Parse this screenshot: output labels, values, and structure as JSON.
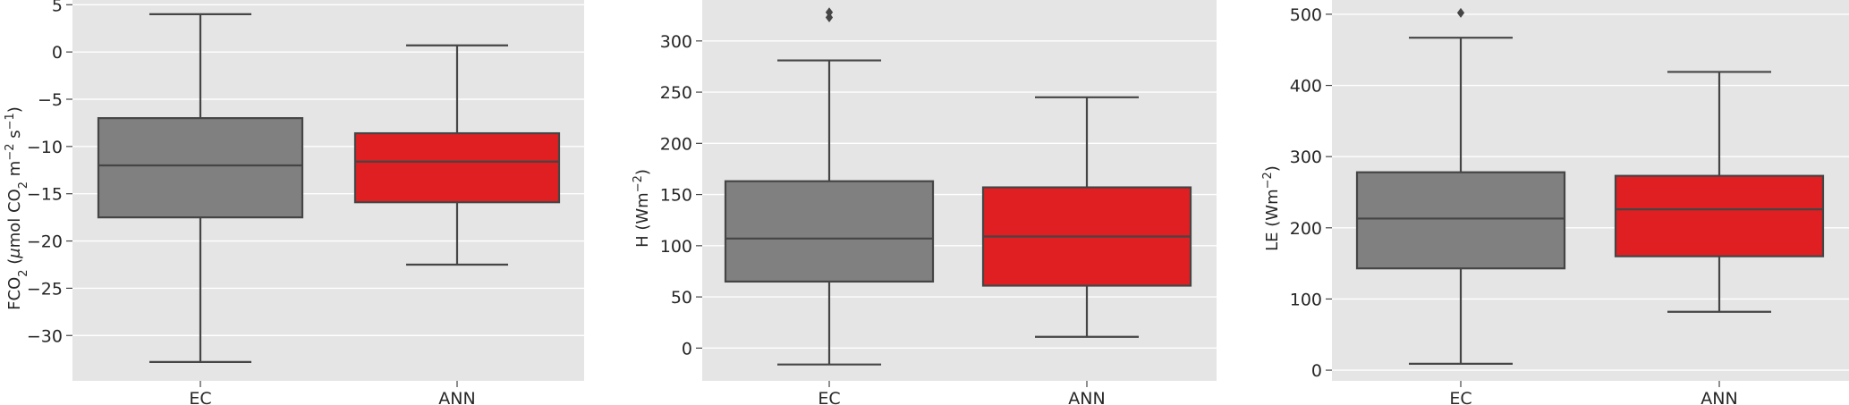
{
  "colors": {
    "panel_bg": "#e5e5e5",
    "grid": "#ffffff",
    "line": "#454545",
    "ec": "#808080",
    "ann": "#e01f22"
  },
  "chart_data": [
    {
      "type": "box",
      "ylabel": "FCO2 (μmol CO2 m−2 s−1)",
      "ylabel_parts": {
        "a": "FCO",
        "a_sub": "2",
        "b": " (",
        "mu": "μ",
        "c": "mol CO",
        "c_sub": "2",
        "d": " m",
        "d_sup": "−2",
        "e": " s",
        "e_sup": "−1",
        "f": ")"
      },
      "ylim": [
        -34.8,
        5.5
      ],
      "yticks": [
        5,
        0,
        -5,
        -10,
        -15,
        -20,
        -25,
        -30
      ],
      "ytick_labels": [
        "5",
        "0",
        "−5",
        "−10",
        "−15",
        "−20",
        "−25",
        "−30"
      ],
      "grid": true,
      "categories": [
        "EC",
        "ANN"
      ],
      "boxes": [
        {
          "name": "EC",
          "whislo": -32.8,
          "q1": -17.5,
          "med": -12.0,
          "q3": -7.0,
          "whishi": 4.0,
          "fliers": []
        },
        {
          "name": "ANN",
          "whislo": -22.5,
          "q1": -15.9,
          "med": -11.6,
          "q3": -8.6,
          "whishi": 0.7,
          "fliers": []
        }
      ]
    },
    {
      "type": "box",
      "ylabel": "H (Wm−2)",
      "ylabel_parts": {
        "a": "H (Wm",
        "sup": "−2",
        "b": ")"
      },
      "ylim": [
        -32,
        340
      ],
      "yticks": [
        300,
        250,
        200,
        150,
        100,
        50,
        0
      ],
      "ytick_labels": [
        "300",
        "250",
        "200",
        "150",
        "100",
        "50",
        "0"
      ],
      "grid": true,
      "categories": [
        "EC",
        "ANN"
      ],
      "boxes": [
        {
          "name": "EC",
          "whislo": -16,
          "q1": 65,
          "med": 107,
          "q3": 163,
          "whishi": 281,
          "fliers": [
            323,
            328
          ]
        },
        {
          "name": "ANN",
          "whislo": 11,
          "q1": 61,
          "med": 109,
          "q3": 157,
          "whishi": 245,
          "fliers": []
        }
      ]
    },
    {
      "type": "box",
      "ylabel": "LE (Wm−2)",
      "ylabel_parts": {
        "a": "LE (Wm",
        "sup": "−2",
        "b": ")"
      },
      "ylim": [
        -15,
        520
      ],
      "yticks": [
        500,
        400,
        300,
        200,
        100,
        0
      ],
      "ytick_labels": [
        "500",
        "400",
        "300",
        "200",
        "100",
        "0"
      ],
      "grid": true,
      "categories": [
        "EC",
        "ANN"
      ],
      "boxes": [
        {
          "name": "EC",
          "whislo": 9,
          "q1": 143,
          "med": 213,
          "q3": 278,
          "whishi": 467,
          "fliers": [
            502
          ]
        },
        {
          "name": "ANN",
          "whislo": 82,
          "q1": 160,
          "med": 226,
          "q3": 273,
          "whishi": 419,
          "fliers": []
        }
      ]
    }
  ]
}
